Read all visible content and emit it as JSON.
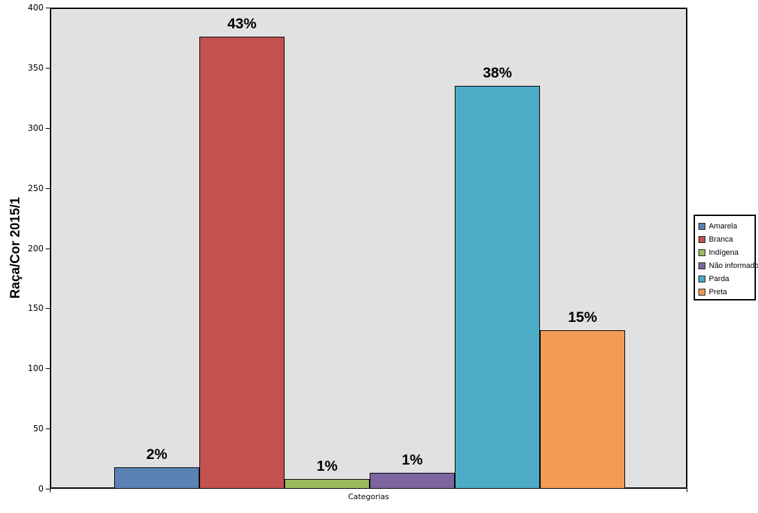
{
  "chart_data": {
    "type": "bar",
    "title": "",
    "ylabel": "Raça/Cor 2015/1",
    "xlabel": "Categorias",
    "ylim": [
      0,
      400
    ],
    "y_ticks": [
      0,
      50,
      100,
      150,
      200,
      250,
      300,
      350,
      400
    ],
    "grid": false,
    "legend_position": "right",
    "plot_background": "#e1e1e1",
    "border_color": "#000000",
    "categories": [
      "Categorias"
    ],
    "series": [
      {
        "name": "Amarela",
        "value": 18,
        "data_label": "2%",
        "color": "#5a82b5"
      },
      {
        "name": "Branca",
        "value": 376,
        "data_label": "43%",
        "color": "#c25150"
      },
      {
        "name": "Indígena",
        "value": 8,
        "data_label": "1%",
        "color": "#9cba5e"
      },
      {
        "name": "Não informado",
        "value": 13,
        "data_label": "1%",
        "color": "#7d659f"
      },
      {
        "name": "Parda",
        "value": 335,
        "data_label": "38%",
        "color": "#4cacc5"
      },
      {
        "name": "Preta",
        "value": 132,
        "data_label": "15%",
        "color": "#f29b57"
      }
    ]
  }
}
